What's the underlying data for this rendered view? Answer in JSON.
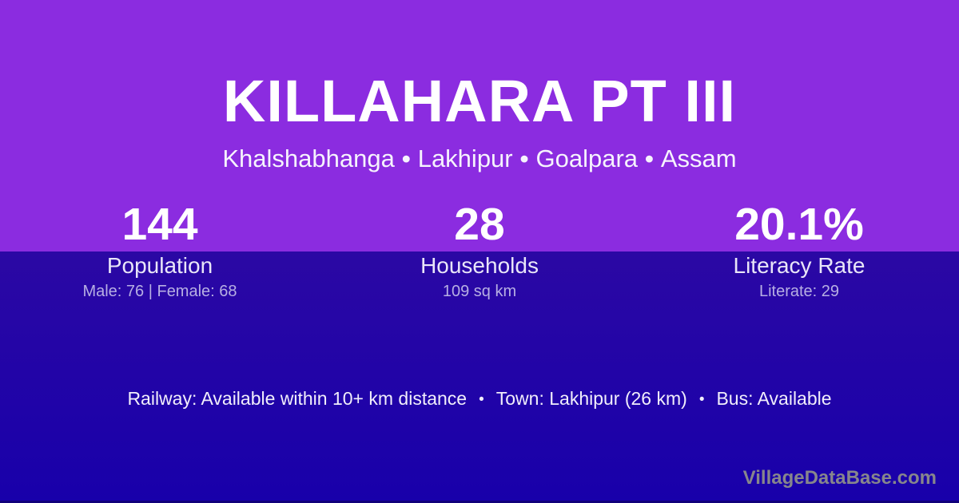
{
  "header": {
    "title": "KILLAHARA PT III",
    "location_parts": [
      "Khalshabhanga",
      "Lakhipur",
      "Goalpara",
      "Assam"
    ],
    "separator": "•"
  },
  "stats": [
    {
      "value": "144",
      "label": "Population",
      "detail": "Male: 76 | Female: 68"
    },
    {
      "value": "28",
      "label": "Households",
      "detail": "109 sq km"
    },
    {
      "value": "20.1%",
      "label": "Literacy Rate",
      "detail": "Literate: 29"
    }
  ],
  "footer": {
    "parts": [
      "Railway: Available within 10+ km distance",
      "Town: Lakhipur (26 km)",
      "Bus: Available"
    ],
    "separator": "•"
  },
  "watermark": "VillageDataBase.com",
  "colors": {
    "top_background": "#8B2CE0",
    "bottom_background_top": "#2B08A4",
    "bottom_background_bottom": "#1800AA",
    "bottom_edge": "#10017A",
    "title_text": "#FFFFFF",
    "subtitle_text": "#F6F3FD",
    "value_text": "#FFFFFF",
    "label_text": "#E9E6F8",
    "detail_text": "#B7AFE3",
    "footer_text": "#F1EEFB",
    "watermark_text": "#87868C"
  }
}
